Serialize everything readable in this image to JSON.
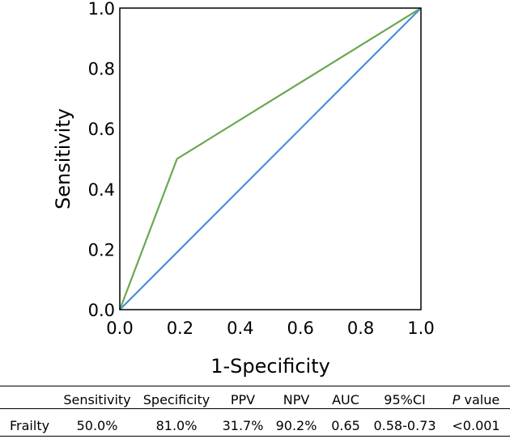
{
  "chart_data": {
    "type": "line",
    "title": "",
    "xlabel": "1-Specificity",
    "ylabel": "Sensitivity",
    "xlim": [
      0.0,
      1.0
    ],
    "ylim": [
      0.0,
      1.0
    ],
    "xticks": [
      "0.0",
      "0.2",
      "0.4",
      "0.6",
      "0.8",
      "1.0"
    ],
    "yticks": [
      "0.0",
      "0.2",
      "0.4",
      "0.6",
      "0.8",
      "1.0"
    ],
    "grid": false,
    "series": [
      {
        "x": [
          0.0,
          0.19,
          1.0
        ],
        "y": [
          0.0,
          0.5,
          1.0
        ],
        "color": "#6aa84f"
      },
      {
        "x": [
          0.0,
          1.0
        ],
        "y": [
          0.0,
          1.0
        ],
        "color": "#4a90d9"
      }
    ]
  },
  "table": {
    "headers": [
      "Sensitivity",
      "Specificity",
      "PPV",
      "NPV",
      "AUC",
      "95%CI"
    ],
    "p_header_italic": "P",
    "p_header_rest": "value",
    "row_label": "Frailty",
    "row_values": [
      "50.0%",
      "81.0%",
      "31.7%",
      "90.2%",
      "0.65",
      "0.58-0.73",
      "<0.001"
    ]
  }
}
